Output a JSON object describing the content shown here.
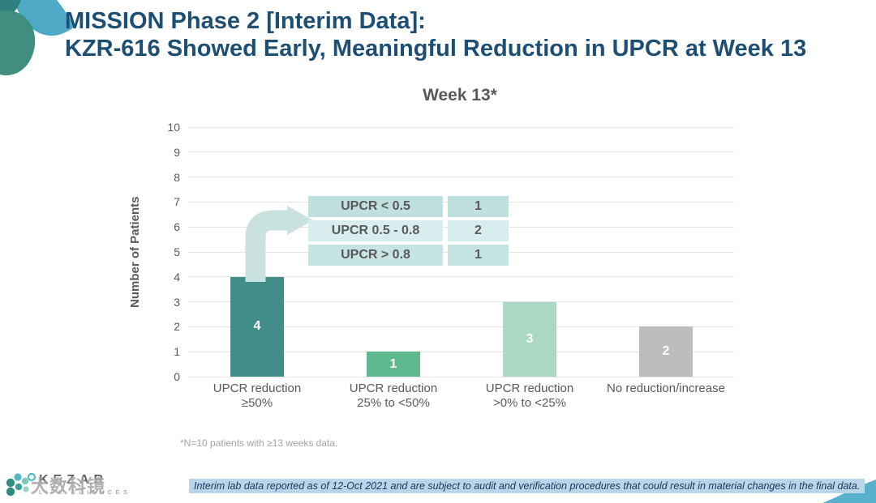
{
  "slide": {
    "title_line1": "MISSION Phase 2 [Interim Data]:",
    "title_line2": "KZR-616 Showed Early, Meaningful Reduction in UPCR at Week 13"
  },
  "chart_data": {
    "type": "bar",
    "title": "Week 13*",
    "ylabel": "Number of Patients",
    "ylim": [
      0,
      10
    ],
    "ytick_step": 1,
    "grid": true,
    "categories": [
      {
        "line1": "UPCR reduction",
        "line2": "≥50%"
      },
      {
        "line1": "UPCR reduction",
        "line2": "25% to <50%"
      },
      {
        "line1": "UPCR reduction",
        "line2": ">0% to <25%"
      },
      {
        "line1": "No reduction/increase",
        "line2": ""
      }
    ],
    "values": [
      4,
      1,
      3,
      2
    ],
    "bar_colors": [
      "#418e88",
      "#60b88e",
      "#aad8c4",
      "#bdbdbd"
    ],
    "value_label_color": "#ffffff"
  },
  "callout_table": {
    "rows": [
      {
        "label": "UPCR < 0.5",
        "value": "1",
        "bg": "#c0e0e0"
      },
      {
        "label": "UPCR 0.5 - 0.8",
        "value": "2",
        "bg": "#d8edee"
      },
      {
        "label": "UPCR > 0.8",
        "value": "1",
        "bg": "#c7e4e4"
      }
    ]
  },
  "footnote": "*N=10 patients with ≥13 weeks data.",
  "disclaimer": {
    "text": "Interim lab data reported as of 12-Oct 2021 and are subject to audit and verification procedures that could result in material changes in the final data."
  },
  "logo": {
    "name": "KEZAR",
    "tagline": "LIFE SCIENCES"
  },
  "watermark": "大数科镜",
  "colors": {
    "title": "#1d4e74",
    "arrow": "#c9e2e0",
    "gridline": "#e4e4e4",
    "disclaimer_bg": "#b9d5e9",
    "disclaimer_text": "#17375e"
  }
}
